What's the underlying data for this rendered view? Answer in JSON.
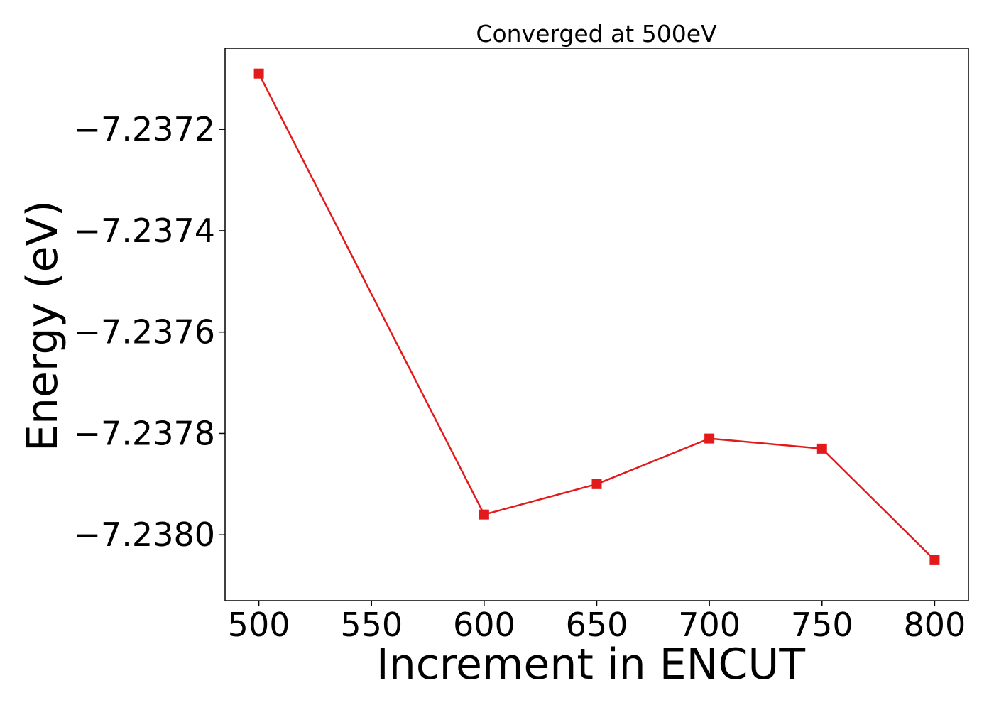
{
  "chart_data": {
    "type": "line",
    "title": "Converged at 500eV",
    "xlabel": "Increment in ENCUT",
    "ylabel": "Energy (eV)",
    "x": [
      500,
      600,
      650,
      700,
      750,
      800
    ],
    "series": [
      {
        "values": [
          -7.23709,
          -7.23796,
          -7.2379,
          -7.23781,
          -7.23783,
          -7.23805
        ],
        "color": "#e31a1c",
        "marker": "square"
      }
    ],
    "xlim": [
      485,
      815
    ],
    "ylim": [
      -7.23813,
      -7.23704
    ],
    "xticks": [
      500,
      550,
      600,
      650,
      700,
      750,
      800
    ],
    "xtick_labels": [
      "500",
      "550",
      "600",
      "650",
      "700",
      "750",
      "800"
    ],
    "yticks": [
      -7.2372,
      -7.2374,
      -7.2376,
      -7.2378,
      -7.238
    ],
    "ytick_labels": [
      "−7.2372",
      "−7.2374",
      "−7.2376",
      "−7.2378",
      "−7.2380"
    ],
    "grid": false,
    "legend": "none"
  }
}
